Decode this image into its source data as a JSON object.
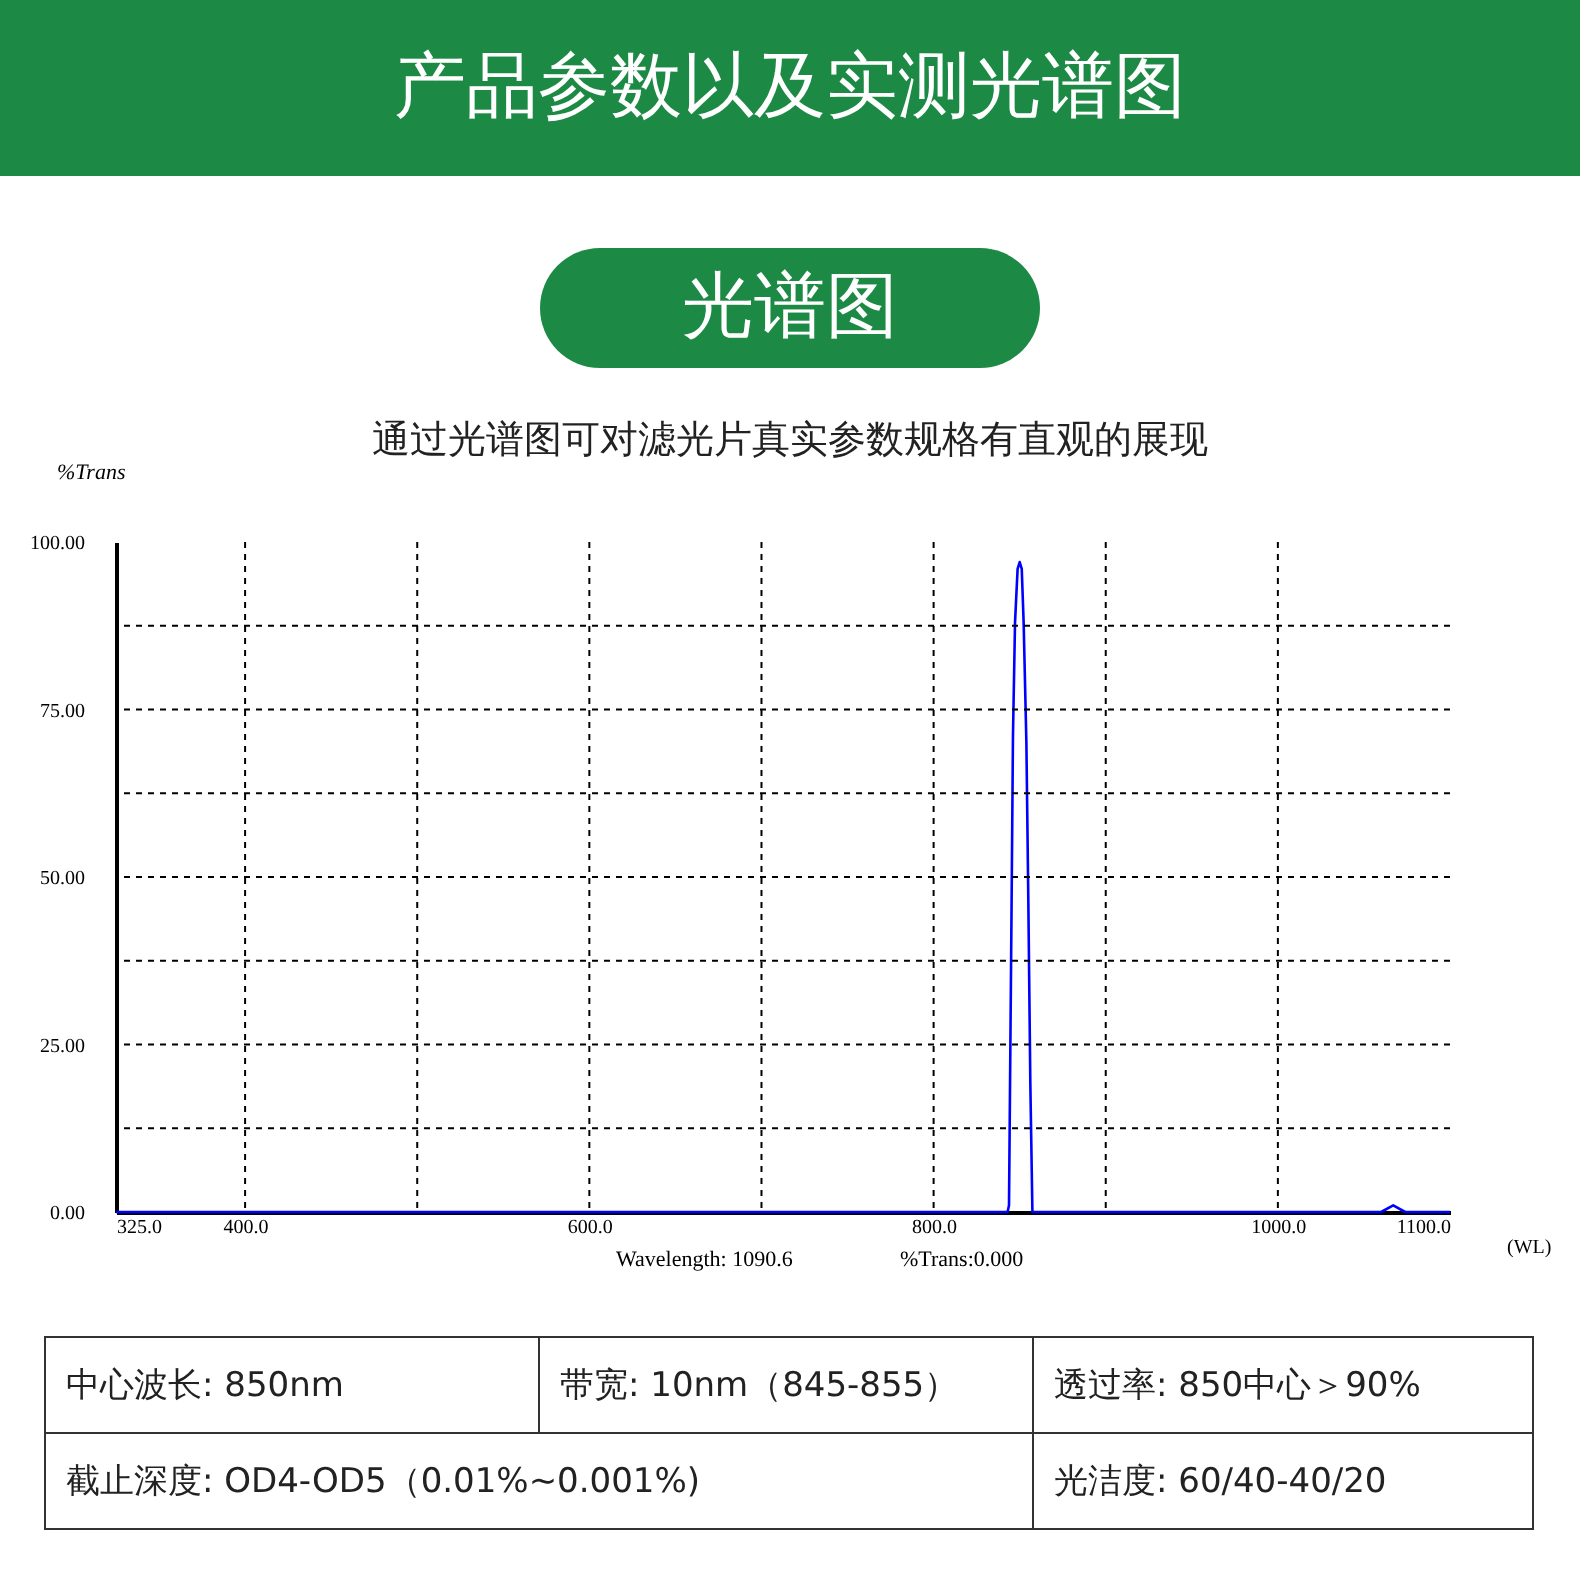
{
  "chart_data": {
    "type": "line",
    "title": "产品参数以及实测光谱图",
    "subtitle": "光谱图",
    "xlabel": "(WL)",
    "ylabel": "%Trans",
    "annotations": [
      "通过光谱图可对滤光片真实参数规格有直观的展现",
      "Wavelength: 1090.6",
      "%Trans:0.000",
      "中心波长: 850nm",
      "带宽: 10nm（845-855）",
      "透过率: 850中心＞90%",
      "截止深度: OD4-OD5（0.01%~0.001%)",
      "光洁度: 60/40-40/20"
    ],
    "x": [
      325,
      843,
      843.8,
      844.6,
      845.3,
      846.1,
      847.3,
      848.8,
      850,
      851.2,
      852.3,
      853.9,
      855,
      856.2,
      857.4,
      1060,
      1067,
      1074,
      1100
    ],
    "series": [
      {
        "color": "#0000ff",
        "values": [
          0,
          0,
          1,
          25,
          46,
          71,
          88,
          96,
          97,
          96,
          88,
          70,
          47,
          19,
          0,
          0,
          1,
          0,
          0
        ]
      }
    ],
    "xlim": [
      325,
      1100
    ],
    "ylim": [
      0,
      100
    ],
    "xticks": [
      {
        "value": 325,
        "label": "325.0"
      },
      {
        "value": 400,
        "label": "400.0"
      },
      {
        "value": 500,
        "label": null
      },
      {
        "value": 600,
        "label": "600.0"
      },
      {
        "value": 700,
        "label": null
      },
      {
        "value": 800,
        "label": "800.0"
      },
      {
        "value": 900,
        "label": null
      },
      {
        "value": 1000,
        "label": "1000.0"
      },
      {
        "value": 1100,
        "label": "1100.0"
      }
    ],
    "yticks": [
      {
        "value": 0,
        "label": "0.00"
      },
      {
        "value": 12.5,
        "label": null
      },
      {
        "value": 25,
        "label": "25.00"
      },
      {
        "value": 37.5,
        "label": null
      },
      {
        "value": 50,
        "label": "50.00"
      },
      {
        "value": 62.5,
        "label": null
      },
      {
        "value": 75,
        "label": "75.00"
      },
      {
        "value": 87.5,
        "label": null
      },
      {
        "value": 100,
        "label": "100.00"
      }
    ],
    "grid": true,
    "line_style": "solid",
    "marker": "none"
  }
}
